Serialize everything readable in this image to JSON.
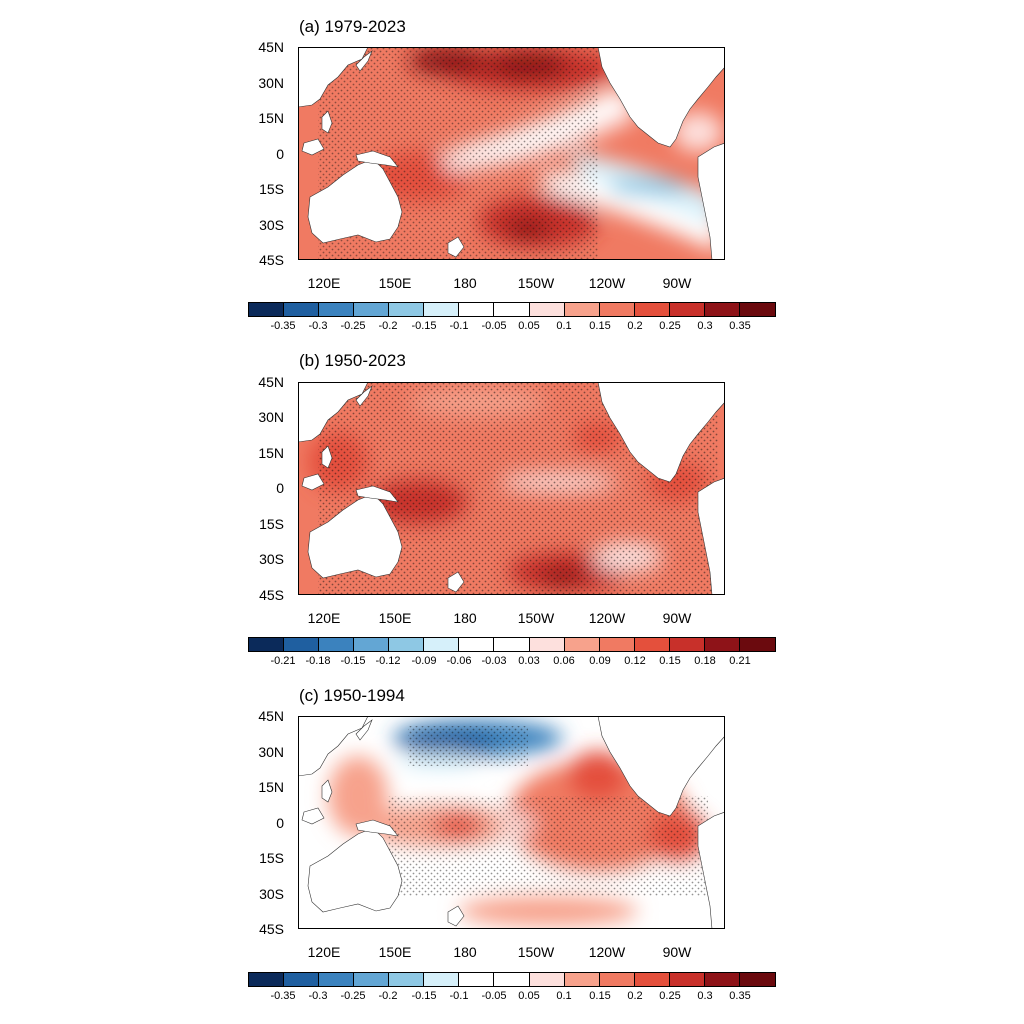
{
  "colorbar_colors": [
    "#0b2a5a",
    "#1f5fa0",
    "#3b82be",
    "#63a6d4",
    "#8ec8e4",
    "#d6f0fa",
    "#ffffff",
    "#fde0dd",
    "#f7a28c",
    "#f07a62",
    "#e4503c",
    "#c8302a",
    "#8e1318",
    "#6b0a0e"
  ],
  "lat_labels": [
    "45N",
    "30N",
    "15N",
    "0",
    "15S",
    "30S",
    "45S"
  ],
  "lon_labels": [
    "120E",
    "150E",
    "180",
    "150W",
    "120W",
    "90W"
  ],
  "panels": [
    {
      "title": "(a) 1979-2023",
      "colorbar_labels": [
        "-0.35",
        "-0.3",
        "-0.25",
        "-0.2",
        "-0.15",
        "-0.1",
        "-0.05",
        "0.05",
        "0.1",
        "0.15",
        "0.2",
        "0.25",
        "0.3",
        "0.35"
      ]
    },
    {
      "title": "(b) 1950-2023",
      "colorbar_labels": [
        "-0.21",
        "-0.18",
        "-0.15",
        "-0.12",
        "-0.09",
        "-0.06",
        "-0.03",
        "0.03",
        "0.06",
        "0.09",
        "0.12",
        "0.15",
        "0.18",
        "0.21"
      ]
    },
    {
      "title": "(c) 1950-1994",
      "colorbar_labels": [
        "-0.35",
        "-0.3",
        "-0.25",
        "-0.2",
        "-0.15",
        "-0.1",
        "-0.05",
        "0.05",
        "0.1",
        "0.15",
        "0.2",
        "0.25",
        "0.3",
        "0.35"
      ]
    }
  ]
}
